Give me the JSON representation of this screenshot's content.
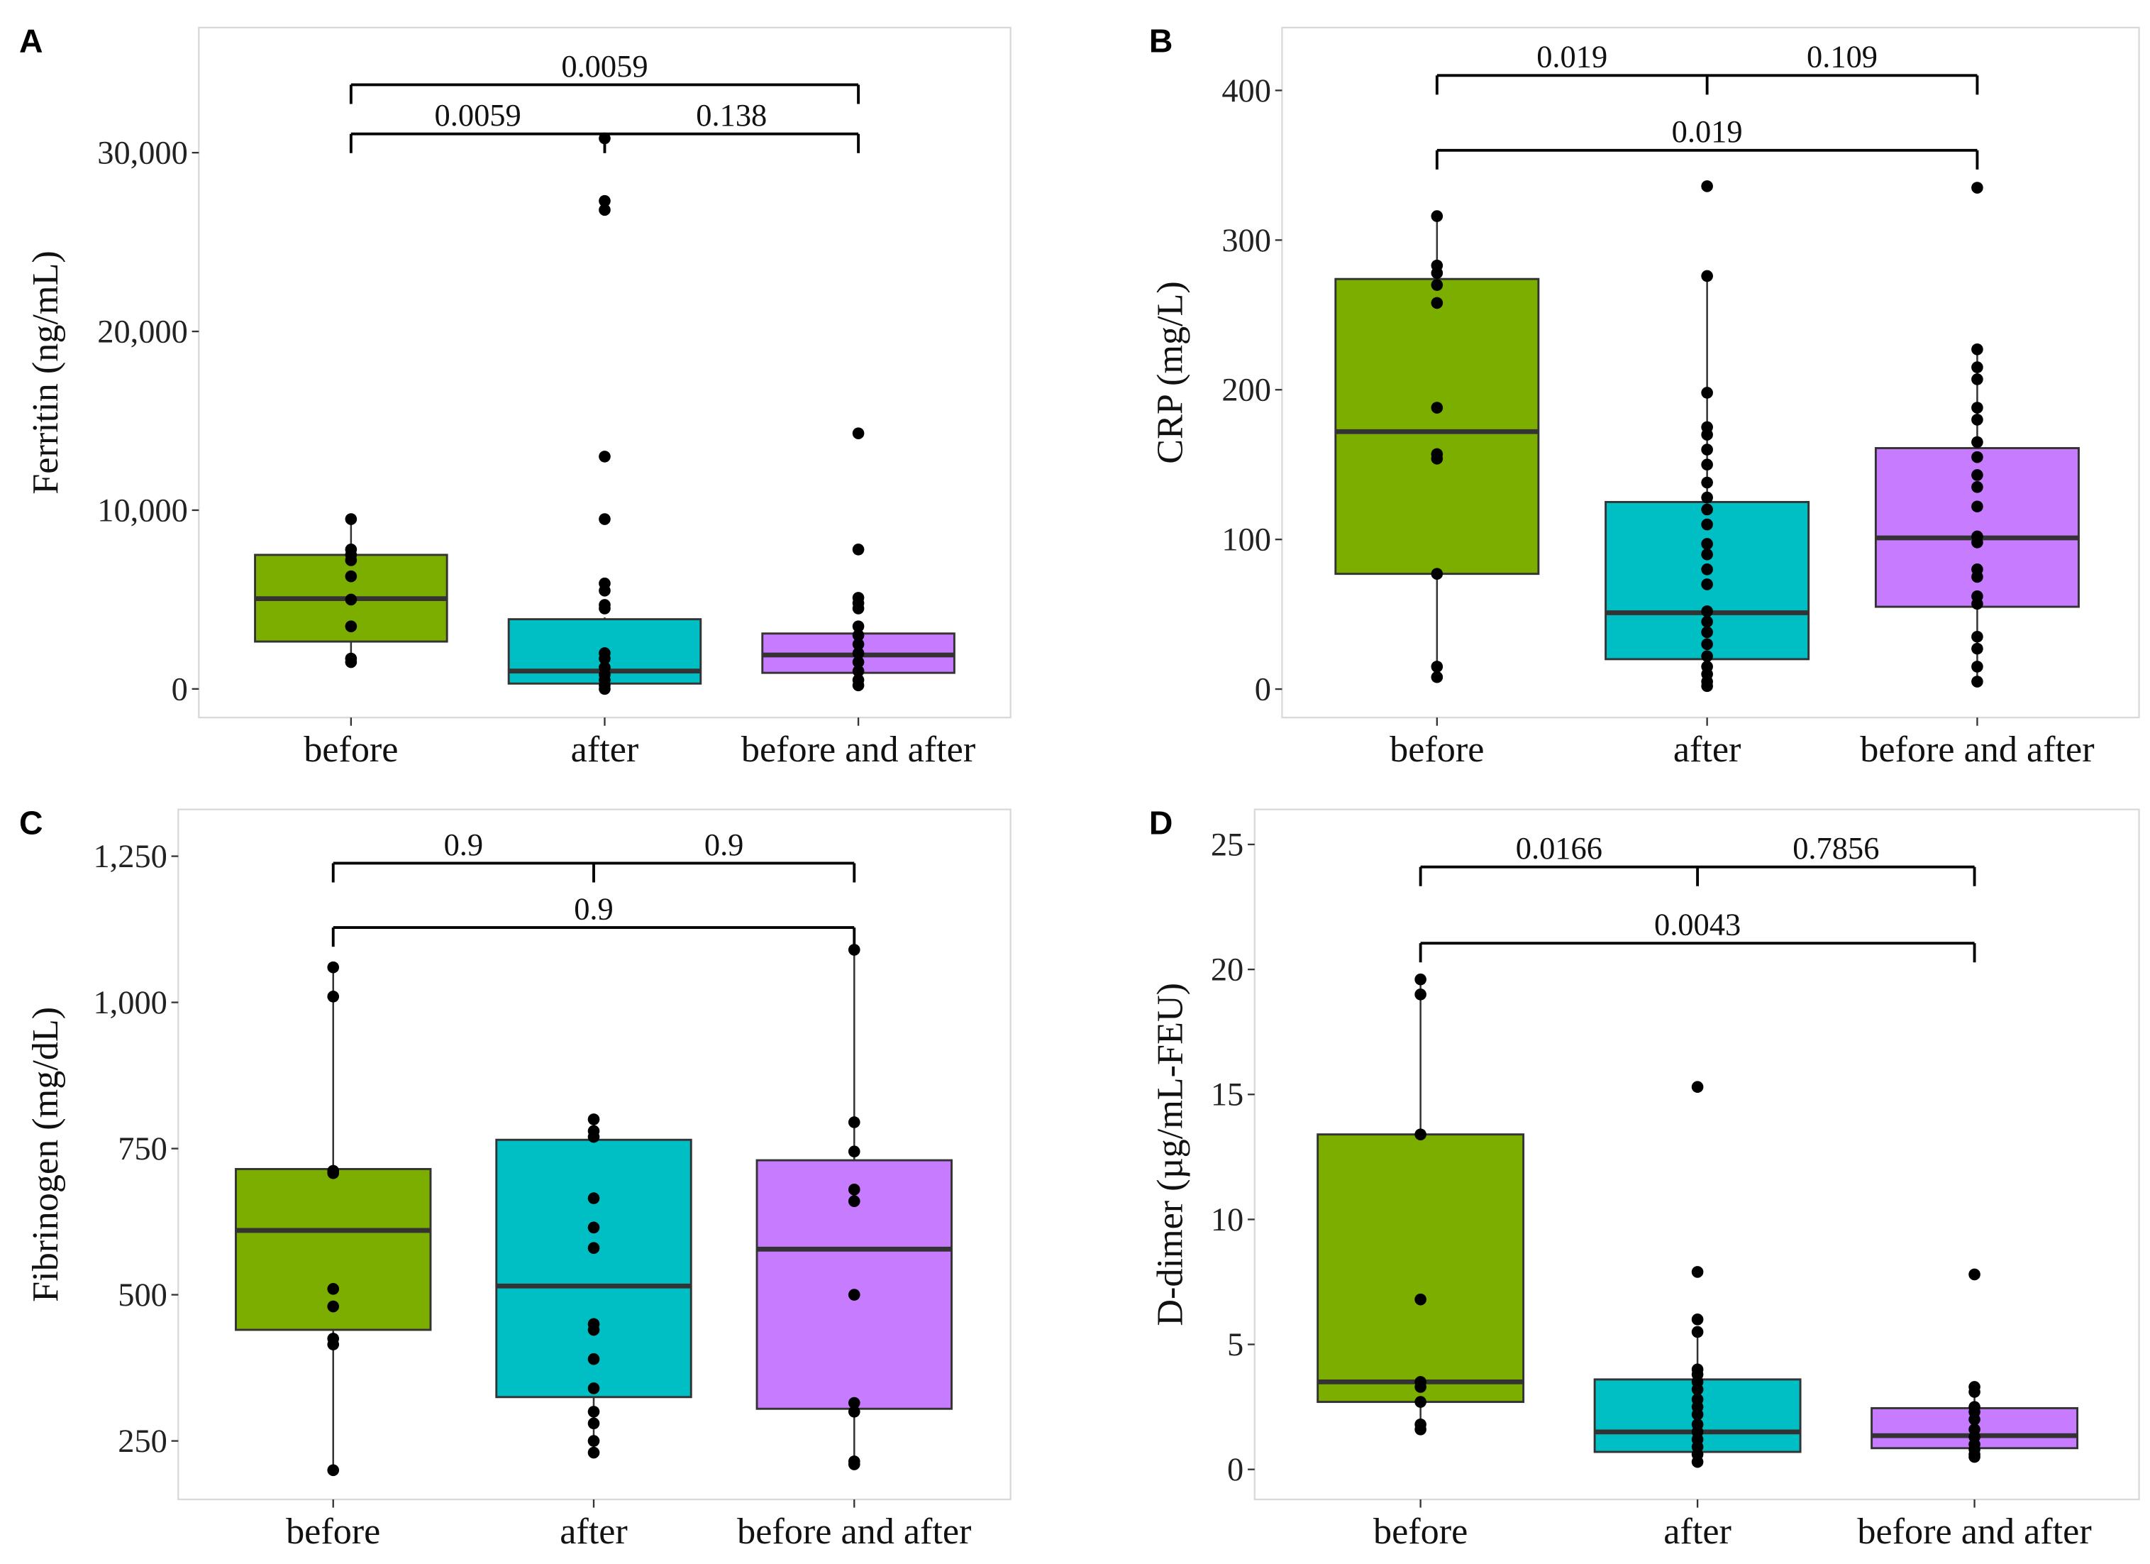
{
  "chart_data": [
    {
      "panel": "A",
      "type": "box",
      "ylabel": "Ferritin (ng/mL)",
      "categories": [
        "before",
        "after",
        "before and after"
      ],
      "ylim": [
        -1600,
        37000
      ],
      "yticks": [
        0,
        10000,
        20000,
        30000
      ],
      "ytick_labels": [
        "0",
        "10,000",
        "20,000",
        "30,000"
      ],
      "boxes": [
        {
          "q1": 2650,
          "median": 5050,
          "q3": 7500,
          "whisker_low": 1500,
          "whisker_high": 9500,
          "points": [
            9500,
            7800,
            7500,
            7200,
            6300,
            5000,
            3500,
            1700,
            1500
          ]
        },
        {
          "q1": 300,
          "median": 1000,
          "q3": 3900,
          "whisker_low": 0,
          "whisker_high": 4000,
          "points": [
            30800,
            27300,
            26800,
            13000,
            9500,
            5900,
            5500,
            4700,
            4500,
            2000,
            1700,
            1200,
            800,
            500,
            200,
            0
          ]
        },
        {
          "q1": 900,
          "median": 1900,
          "q3": 3100,
          "whisker_low": 0,
          "whisker_high": 3500,
          "points": [
            14300,
            7800,
            5100,
            4800,
            4500,
            3500,
            3000,
            2500,
            2000,
            1500,
            1000,
            500,
            200
          ]
        }
      ],
      "brackets": [
        {
          "y": 31050,
          "from": 0,
          "to": 2,
          "mid": 1,
          "labels": [
            "0.0059",
            "0.138"
          ]
        },
        {
          "y": 33800,
          "from": 0,
          "to": 2,
          "labels": [
            "0.0059"
          ]
        }
      ]
    },
    {
      "panel": "B",
      "type": "box",
      "ylabel": "CRP (mg/L)",
      "categories": [
        "before",
        "after",
        "before and after"
      ],
      "ylim": [
        -19,
        442
      ],
      "yticks": [
        0,
        100,
        200,
        300,
        400
      ],
      "ytick_labels": [
        "0",
        "100",
        "200",
        "300",
        "400"
      ],
      "boxes": [
        {
          "q1": 77,
          "median": 172,
          "q3": 274,
          "whisker_low": 8,
          "whisker_high": 316,
          "points": [
            316,
            283,
            278,
            270,
            258,
            188,
            157,
            154,
            77,
            15,
            8
          ]
        },
        {
          "q1": 20,
          "median": 51,
          "q3": 125,
          "whisker_low": 0,
          "whisker_high": 276,
          "points": [
            336,
            276,
            198,
            175,
            170,
            160,
            150,
            138,
            128,
            120,
            110,
            97,
            90,
            80,
            70,
            52,
            45,
            38,
            30,
            22,
            15,
            10,
            5,
            2
          ]
        },
        {
          "q1": 55,
          "median": 101,
          "q3": 161,
          "whisker_low": 5,
          "whisker_high": 227,
          "points": [
            335,
            227,
            215,
            207,
            188,
            180,
            165,
            155,
            143,
            135,
            122,
            102,
            98,
            80,
            75,
            62,
            57,
            35,
            27,
            15,
            5
          ]
        }
      ],
      "brackets": [
        {
          "y": 410,
          "from": 0,
          "to": 2,
          "mid": 1,
          "labels": [
            "0.019",
            "0.109"
          ]
        },
        {
          "y": 360,
          "from": 0,
          "to": 2,
          "labels": [
            "0.019"
          ]
        }
      ]
    },
    {
      "panel": "C",
      "type": "box",
      "ylabel": "Fibrinogen (mg/dL)",
      "categories": [
        "before",
        "after",
        "before and after"
      ],
      "ylim": [
        150,
        1330
      ],
      "yticks": [
        250,
        500,
        750,
        1000,
        1250
      ],
      "ytick_labels": [
        "250",
        "500",
        "750",
        "1,000",
        "1,250"
      ],
      "boxes": [
        {
          "q1": 440,
          "median": 610,
          "q3": 715,
          "whisker_low": 200,
          "whisker_high": 1060,
          "points": [
            1060,
            1010,
            712,
            708,
            510,
            480,
            425,
            415,
            200
          ]
        },
        {
          "q1": 325,
          "median": 515,
          "q3": 765,
          "whisker_low": 230,
          "whisker_high": 800,
          "points": [
            800,
            780,
            770,
            665,
            615,
            580,
            450,
            440,
            390,
            340,
            300,
            280,
            250,
            230
          ]
        },
        {
          "q1": 305,
          "median": 578,
          "q3": 730,
          "whisker_low": 210,
          "whisker_high": 1090,
          "points": [
            1090,
            795,
            745,
            680,
            660,
            500,
            315,
            300,
            215,
            210
          ]
        }
      ],
      "brackets": [
        {
          "y": 1238,
          "from": 0,
          "to": 2,
          "mid": 1,
          "labels": [
            "0.9",
            "0.9"
          ]
        },
        {
          "y": 1128,
          "from": 0,
          "to": 2,
          "labels": [
            "0.9"
          ]
        }
      ]
    },
    {
      "panel": "D",
      "type": "box",
      "ylabel": "D-dimer (µg/mL-FEU)",
      "categories": [
        "before",
        "after",
        "before and after"
      ],
      "ylim": [
        -1.2,
        26.4
      ],
      "yticks": [
        0,
        5,
        10,
        15,
        20,
        25
      ],
      "ytick_labels": [
        "0",
        "5",
        "10",
        "15",
        "20",
        "25"
      ],
      "boxes": [
        {
          "q1": 2.7,
          "median": 3.5,
          "q3": 13.4,
          "whisker_low": 1.6,
          "whisker_high": 19.6,
          "points": [
            19.6,
            19.0,
            13.4,
            6.8,
            3.5,
            3.3,
            2.7,
            1.8,
            1.6
          ]
        },
        {
          "q1": 0.7,
          "median": 1.5,
          "q3": 3.6,
          "whisker_low": 0.3,
          "whisker_high": 5.6,
          "points": [
            15.3,
            7.9,
            6.0,
            5.5,
            4.0,
            3.8,
            3.5,
            3.2,
            2.8,
            2.5,
            2.2,
            1.8,
            1.5,
            1.2,
            0.9,
            0.6,
            0.3
          ]
        },
        {
          "q1": 0.85,
          "median": 1.35,
          "q3": 2.45,
          "whisker_low": 0.5,
          "whisker_high": 3.3,
          "points": [
            7.8,
            3.3,
            3.1,
            2.5,
            2.3,
            2.0,
            1.6,
            1.3,
            1.0,
            0.8,
            0.6,
            0.5
          ]
        }
      ],
      "brackets": [
        {
          "y": 24.1,
          "from": 0,
          "to": 2,
          "mid": 1,
          "labels": [
            "0.0166",
            "0.7856"
          ]
        },
        {
          "y": 21.05,
          "from": 0,
          "to": 2,
          "labels": [
            "0.0043"
          ]
        }
      ]
    }
  ],
  "colors": {
    "before": "#7CAE00",
    "after": "#00BFC4",
    "before and after": "#C77CFF",
    "line": "#333333"
  }
}
